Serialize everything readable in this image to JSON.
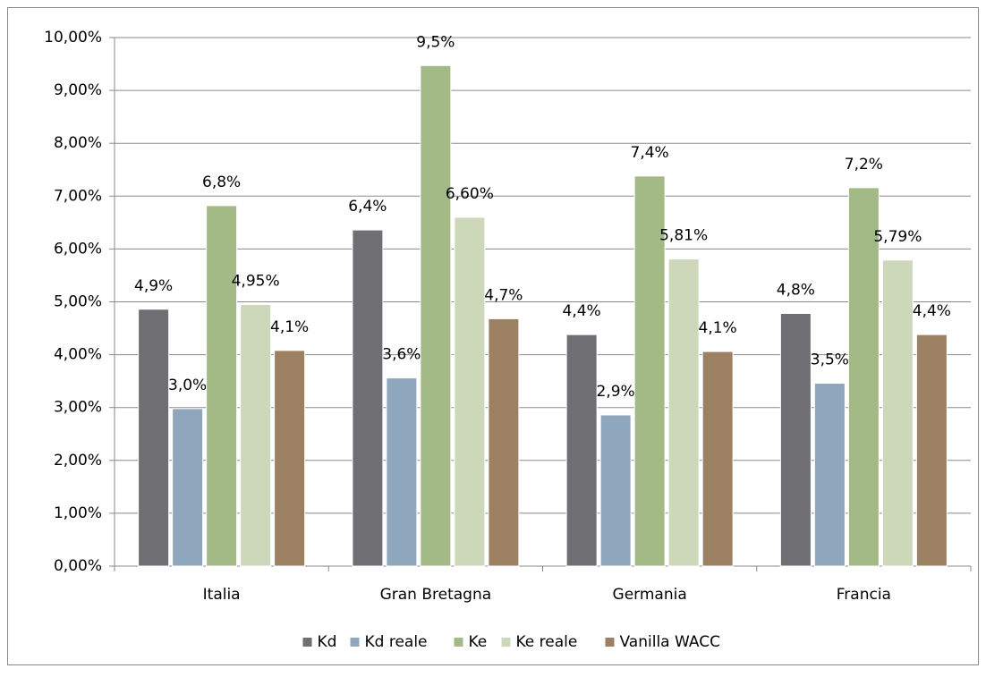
{
  "chart_data": {
    "type": "bar",
    "categories": [
      "Italia",
      "Gran Bretagna",
      "Germania",
      "Francia"
    ],
    "series": [
      {
        "name": "Kd",
        "color": "#6e6e73",
        "values": [
          4.86,
          6.36,
          4.38,
          4.78
        ],
        "value_labels": [
          "4,9%",
          "6,4%",
          "4,4%",
          "4,8%"
        ]
      },
      {
        "name": "Kd reale",
        "color": "#8fa7bd",
        "values": [
          2.98,
          3.56,
          2.86,
          3.46
        ],
        "value_labels": [
          "3,0%",
          "3,6%",
          "2,9%",
          "3,5%"
        ]
      },
      {
        "name": "Ke",
        "color": "#a3b986",
        "values": [
          6.82,
          9.47,
          7.38,
          7.16
        ],
        "value_labels": [
          "6,8%",
          "9,5%",
          "7,4%",
          "7,2%"
        ]
      },
      {
        "name": "Ke reale",
        "color": "#cdd8bb",
        "values": [
          4.95,
          6.6,
          5.81,
          5.79
        ],
        "value_labels": [
          "4,95%",
          "6,60%",
          "5,81%",
          "5,79%"
        ]
      },
      {
        "name": "Vanilla WACC",
        "color": "#9b8162",
        "values": [
          4.08,
          4.68,
          4.06,
          4.38
        ],
        "value_labels": [
          "4,1%",
          "4,7%",
          "4,1%",
          "4,4%"
        ]
      }
    ],
    "ylim": [
      0,
      10
    ],
    "yticks": [
      {
        "value": 0,
        "label": "0,00%"
      },
      {
        "value": 1,
        "label": "1,00%"
      },
      {
        "value": 2,
        "label": "2,00%"
      },
      {
        "value": 3,
        "label": "3,00%"
      },
      {
        "value": 4,
        "label": "4,00%"
      },
      {
        "value": 5,
        "label": "5,00%"
      },
      {
        "value": 6,
        "label": "6,00%"
      },
      {
        "value": 7,
        "label": "7,00%"
      },
      {
        "value": 8,
        "label": "8,00%"
      },
      {
        "value": 9,
        "label": "9,00%"
      },
      {
        "value": 10,
        "label": "10,00%"
      }
    ],
    "grid": true,
    "legend": "bottom"
  }
}
